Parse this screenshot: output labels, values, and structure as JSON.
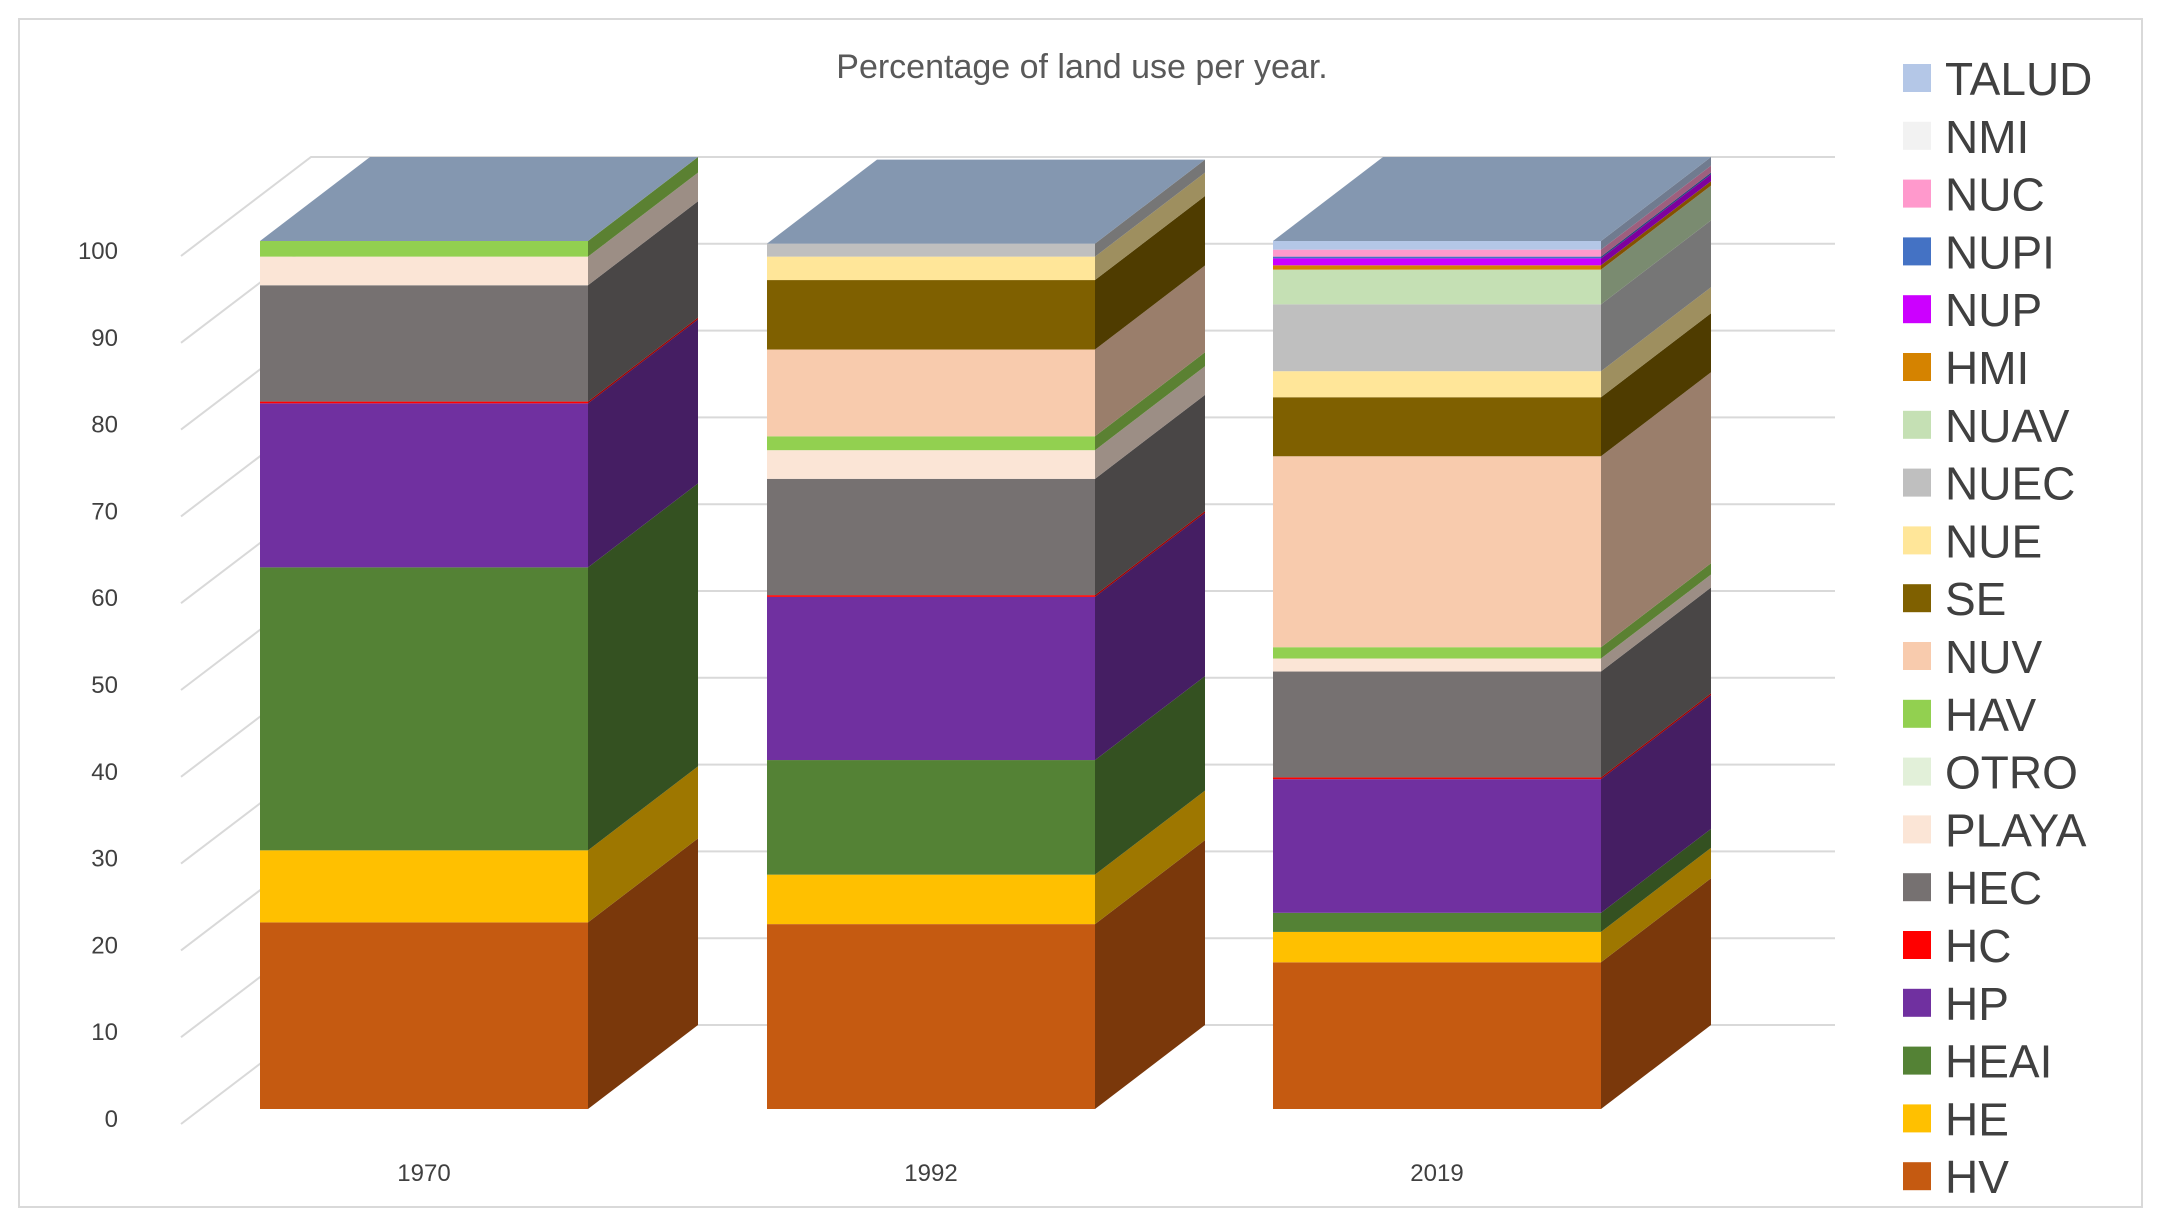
{
  "chart_data": {
    "type": "bar",
    "stacked": true,
    "style": "3d-stacked-column",
    "title": "Percentage of land use per year.",
    "xlabel": "",
    "ylabel": "",
    "ylim": [
      0,
      100
    ],
    "yticks": [
      0,
      10,
      20,
      30,
      40,
      50,
      60,
      70,
      80,
      90,
      100
    ],
    "categories": [
      "1970",
      "1992",
      "2019"
    ],
    "legend_position": "right",
    "series": [
      {
        "name": "HV",
        "color": "#C55A11",
        "values": [
          21.5,
          21.3,
          16.9
        ]
      },
      {
        "name": "HE",
        "color": "#FFC000",
        "values": [
          8.3,
          5.7,
          3.5
        ]
      },
      {
        "name": "HEAI",
        "color": "#548235",
        "values": [
          32.6,
          13.2,
          2.2
        ]
      },
      {
        "name": "HP",
        "color": "#7030A0",
        "values": [
          18.9,
          18.8,
          15.4
        ]
      },
      {
        "name": "HC",
        "color": "#FF0000",
        "values": [
          0.2,
          0.2,
          0.2
        ]
      },
      {
        "name": "HEC",
        "color": "#767171",
        "values": [
          13.4,
          13.4,
          12.2
        ]
      },
      {
        "name": "PLAYA",
        "color": "#FBE5D6",
        "values": [
          3.3,
          3.3,
          1.5
        ]
      },
      {
        "name": "OTRO",
        "color": "#E2F0D9",
        "values": [
          0,
          0,
          0
        ]
      },
      {
        "name": "HAV",
        "color": "#92D050",
        "values": [
          1.8,
          1.6,
          1.3
        ]
      },
      {
        "name": "NUV",
        "color": "#F8CBAD",
        "values": [
          0,
          10.0,
          22.0
        ]
      },
      {
        "name": "SE",
        "color": "#7F6000",
        "values": [
          0,
          8.0,
          6.8
        ]
      },
      {
        "name": "NUE",
        "color": "#FFE699",
        "values": [
          0,
          2.7,
          3.0
        ]
      },
      {
        "name": "NUEC",
        "color": "#BFBFBF",
        "values": [
          0,
          1.5,
          7.7
        ]
      },
      {
        "name": "NUAV",
        "color": "#C5E0B4",
        "values": [
          0,
          0,
          4.0
        ]
      },
      {
        "name": "HMI",
        "color": "#D58300",
        "values": [
          0,
          0,
          0.5
        ]
      },
      {
        "name": "NUP",
        "color": "#CC00FF",
        "values": [
          0,
          0,
          0.8
        ]
      },
      {
        "name": "NUPI",
        "color": "#4472C4",
        "values": [
          0,
          0,
          0.2
        ]
      },
      {
        "name": "NUC",
        "color": "#FF99CC",
        "values": [
          0,
          0,
          0.8
        ]
      },
      {
        "name": "NMI",
        "color": "#F2F2F2",
        "values": [
          0,
          0,
          0
        ]
      },
      {
        "name": "TALUD",
        "color": "#B4C7E7",
        "values": [
          0,
          0,
          1.0
        ]
      }
    ]
  }
}
